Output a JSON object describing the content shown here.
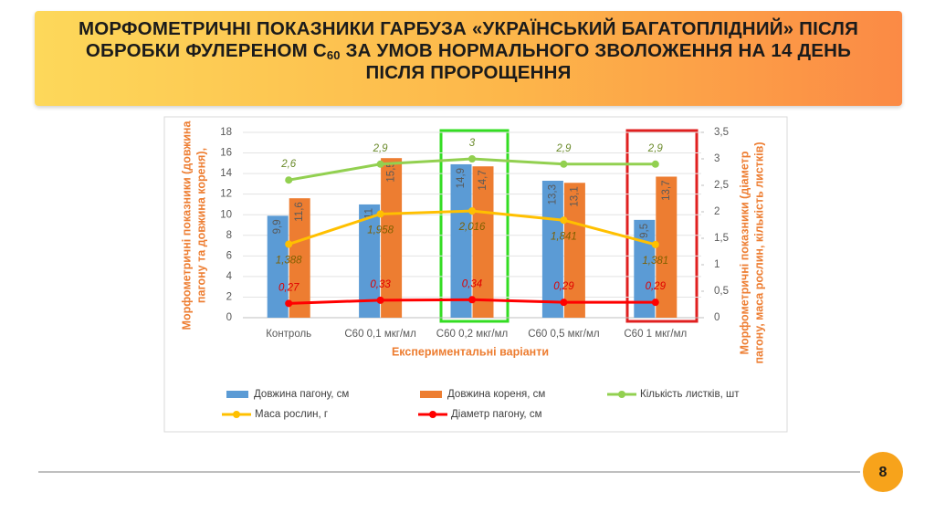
{
  "header": {
    "title_parts": [
      "МОРФОМЕТРИЧНІ ПОКАЗНИКИ ГАРБУЗА «УКРАЇНСЬКИЙ БАГАТОПЛІДНИЙ» ПІСЛЯ ОБРОБКИ ФУЛЕРЕНОМ С",
      "60",
      " ЗА УМОВ НОРМАЛЬНОГО ЗВОЛОЖЕННЯ НА 14 ДЕНЬ ПІСЛЯ ПРОРОЩЕННЯ"
    ]
  },
  "chart_data": {
    "type": "bar",
    "x_label": "Експериментальні варіанти",
    "y_label": [
      "Морфометричні показники (довжина",
      "пагону та довжина кореня),"
    ],
    "y2_label": [
      "Морфометричні показники (діаметр",
      "пагону, маса рослин, кількість листків)"
    ],
    "categories": [
      "Контроль",
      "С60 0,1 мкг/мл",
      "С60 0,2 мкг/мл",
      "С60 0,5 мкг/мл",
      "С60 1 мкг/мл"
    ],
    "ylim": [
      0,
      18
    ],
    "yticks": [
      0,
      2,
      4,
      6,
      8,
      10,
      12,
      14,
      16,
      18
    ],
    "y2lim": [
      0,
      3.5
    ],
    "y2ticks": [
      0,
      {
        "value": 0.5,
        "label": "0,5"
      },
      1,
      {
        "value": 1.5,
        "label": "1,5"
      },
      2,
      {
        "value": 2.5,
        "label": "2,5"
      },
      3,
      {
        "value": 3.5,
        "label": "3,5"
      }
    ],
    "series": [
      {
        "name": "Довжина пагону, см",
        "type": "bar",
        "color": "#5b9bd5",
        "values": [
          9.9,
          11,
          14.9,
          13.3,
          9.5
        ],
        "value_labels": [
          "9,9",
          "11",
          "14,9",
          "13,3",
          "9,5"
        ]
      },
      {
        "name": "Довжина кореня, см",
        "type": "bar",
        "color": "#ed7d31",
        "values": [
          11.6,
          15.5,
          14.7,
          13.1,
          13.7
        ],
        "value_labels": [
          "11,6",
          "15,5",
          "14,7",
          "13,1",
          "13,7"
        ]
      },
      {
        "name": "Кількість листків, шт",
        "type": "line",
        "axis": "y2",
        "color": "#92d050",
        "values": [
          2.6,
          2.9,
          3,
          2.9,
          2.9
        ],
        "value_labels": [
          "2,6",
          "2,9",
          "3",
          "2,9",
          "2,9"
        ]
      },
      {
        "name": "Маса рослин, г",
        "type": "line",
        "axis": "y2",
        "color": "#ffc000",
        "values": [
          1.388,
          1.958,
          2.016,
          1.841,
          1.381
        ],
        "value_labels": [
          "1,388",
          "1,958",
          "2,016",
          "1,841",
          "1,381"
        ]
      },
      {
        "name": "Діаметр пагону, см",
        "type": "line",
        "axis": "y2",
        "color": "#ff0000",
        "values": [
          0.27,
          0.33,
          0.34,
          0.29,
          0.29
        ],
        "value_labels": [
          "0,27",
          "0,33",
          "0,34",
          "0,29",
          "0,29"
        ]
      }
    ]
  },
  "footer": {
    "page_number": "8"
  }
}
